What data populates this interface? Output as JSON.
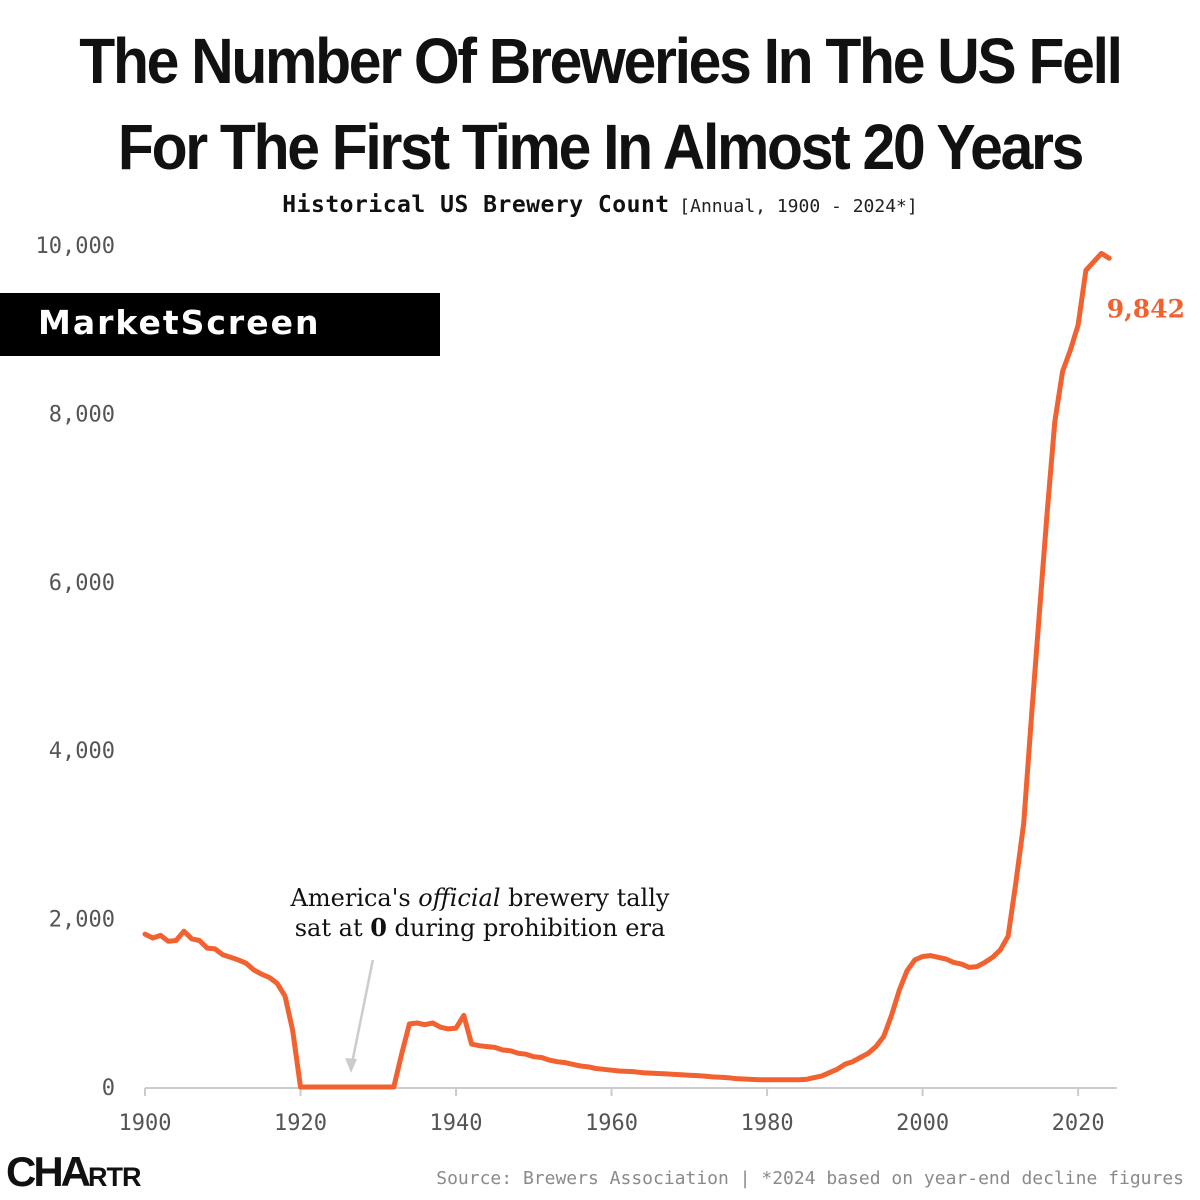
{
  "title_lines": [
    "The Number Of Breweries In The US Fell",
    "For The First Time In Almost 20 Years"
  ],
  "subtitle": {
    "main": "Historical US Brewery Count",
    "meta": "[Annual, 1900 - 2024*]"
  },
  "watermark": "MarketScreen",
  "annotation": {
    "line1_before": "America's ",
    "line1_emph": "official",
    "line1_after": " brewery tally",
    "line2_before": "sat at ",
    "line2_bold": "0",
    "line2_after": " during prohibition era"
  },
  "brand": {
    "big": "CHA",
    "small": "RTR"
  },
  "source": "Source: Brewers Association | *2024 based on year-end decline figures",
  "colors": {
    "line": "#f26230",
    "axis_text": "#555555",
    "baseline": "#cccccc",
    "arrow": "#cccccc"
  },
  "chart_data": {
    "type": "line",
    "title": "Historical US Brewery Count",
    "subtitle": "[Annual, 1900 - 2024*]",
    "xlabel": "",
    "ylabel": "",
    "xlim": [
      1900,
      2025
    ],
    "ylim": [
      0,
      10000
    ],
    "x_ticks": [
      1900,
      1920,
      1940,
      1960,
      1980,
      2000,
      2020
    ],
    "y_ticks": [
      0,
      2000,
      4000,
      6000,
      8000,
      10000
    ],
    "y_tick_labels": [
      "0",
      "2,000",
      "4,000",
      "6,000",
      "8,000",
      "10,000"
    ],
    "grid": false,
    "end_label": "9,842",
    "series": [
      {
        "x": [
          1900,
          1901,
          1902,
          1903,
          1904,
          1905,
          1906,
          1907,
          1908,
          1909,
          1910,
          1911,
          1912,
          1913,
          1914,
          1915,
          1916,
          1917,
          1918,
          1919,
          1920,
          1921,
          1922,
          1923,
          1924,
          1925,
          1926,
          1927,
          1928,
          1929,
          1930,
          1931,
          1932,
          1933,
          1934,
          1935,
          1936,
          1937,
          1938,
          1939,
          1940,
          1941,
          1942,
          1943,
          1944,
          1945,
          1946,
          1947,
          1948,
          1949,
          1950,
          1951,
          1952,
          1953,
          1954,
          1955,
          1956,
          1957,
          1958,
          1959,
          1960,
          1961,
          1962,
          1963,
          1964,
          1965,
          1966,
          1967,
          1968,
          1969,
          1970,
          1971,
          1972,
          1973,
          1974,
          1975,
          1976,
          1977,
          1978,
          1979,
          1980,
          1981,
          1982,
          1983,
          1984,
          1985,
          1986,
          1987,
          1988,
          1989,
          1990,
          1991,
          1992,
          1993,
          1994,
          1995,
          1996,
          1997,
          1998,
          1999,
          2000,
          2001,
          2002,
          2003,
          2004,
          2005,
          2006,
          2007,
          2008,
          2009,
          2010,
          2011,
          2012,
          2013,
          2014,
          2015,
          2016,
          2017,
          2018,
          2019,
          2020,
          2021,
          2022,
          2023,
          2024
        ],
        "values": [
          1816,
          1770,
          1800,
          1730,
          1740,
          1850,
          1760,
          1740,
          1650,
          1640,
          1570,
          1540,
          1510,
          1470,
          1390,
          1340,
          1300,
          1230,
          1080,
          670,
          0,
          0,
          0,
          0,
          0,
          0,
          0,
          0,
          0,
          0,
          0,
          0,
          0,
          390,
          750,
          760,
          740,
          760,
          710,
          690,
          700,
          850,
          510,
          490,
          480,
          470,
          440,
          430,
          400,
          390,
          360,
          350,
          320,
          300,
          290,
          270,
          250,
          240,
          220,
          210,
          200,
          190,
          185,
          180,
          170,
          165,
          160,
          155,
          150,
          145,
          140,
          135,
          130,
          120,
          115,
          110,
          100,
          95,
          90,
          85,
          85,
          85,
          85,
          85,
          85,
          90,
          110,
          130,
          170,
          210,
          270,
          300,
          350,
          400,
          480,
          600,
          850,
          1150,
          1380,
          1510,
          1550,
          1560,
          1540,
          1520,
          1480,
          1460,
          1420,
          1430,
          1480,
          1540,
          1630,
          1790,
          2430,
          3130,
          4400,
          5600,
          6800,
          7900,
          8500,
          8750,
          9050,
          9700,
          9800,
          9900,
          9842
        ]
      }
    ]
  }
}
